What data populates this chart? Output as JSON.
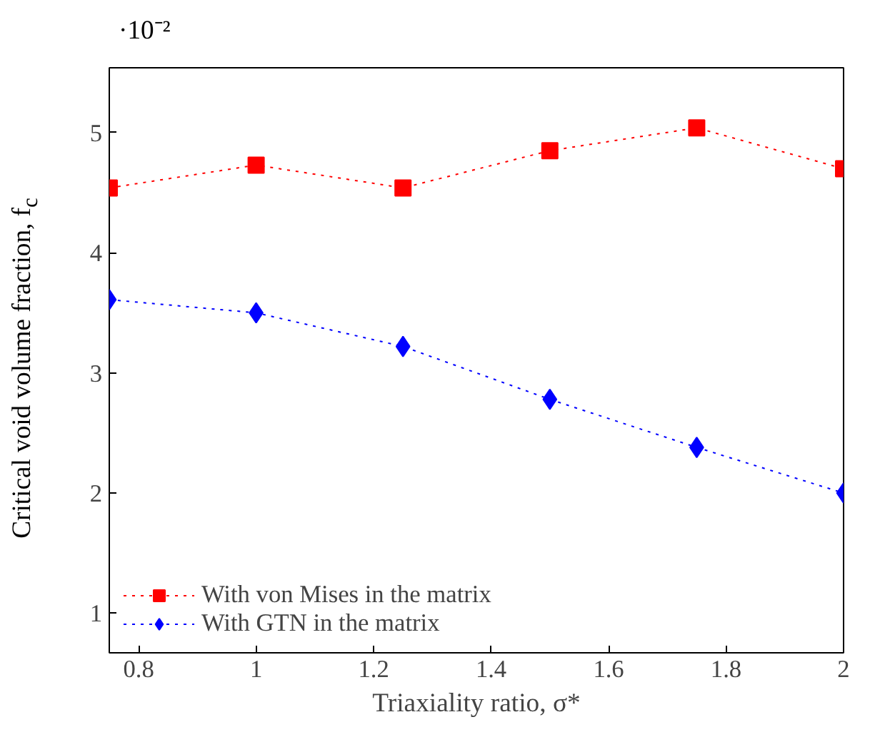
{
  "chart_data": {
    "type": "line",
    "xlabel": "Triaxiality ratio, σ*",
    "ylabel": "Critical void volume fraction, f$_{c}$",
    "annotations": [
      "·10⁻²"
    ],
    "x": [
      0.75,
      1,
      1.25,
      1.5,
      1.75,
      2
    ],
    "series": [
      {
        "name": "With von Mises in the matrix",
        "color": "#ff0000",
        "marker": "square",
        "values": [
          4.54,
          4.73,
          4.54,
          4.85,
          5.04,
          4.7
        ]
      },
      {
        "name": "With GTN in the matrix",
        "color": "#0000ff",
        "marker": "diamond",
        "values": [
          3.61,
          3.5,
          3.22,
          2.78,
          2.38,
          2.0
        ]
      }
    ],
    "line_style": "dotted",
    "xlim": [
      0.75,
      2
    ],
    "xticks": [
      0.8,
      1,
      1.2,
      1.4,
      1.6,
      1.8,
      2
    ],
    "ylim": [
      0.67,
      5.54
    ],
    "yticks": [
      1,
      2,
      3,
      4,
      5
    ],
    "grid": false,
    "legend": "bottom left"
  }
}
